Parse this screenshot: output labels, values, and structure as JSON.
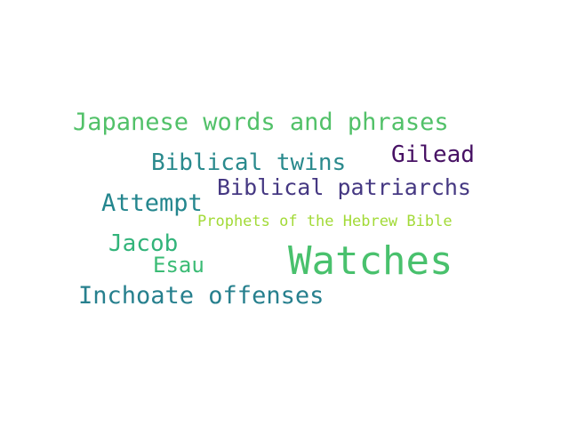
{
  "words": [
    {
      "text": "Japanese words and phrases",
      "color": "#52c169"
    },
    {
      "text": "Biblical twins",
      "color": "#2a8a8d"
    },
    {
      "text": "Gilead",
      "color": "#471164"
    },
    {
      "text": "Biblical patriarchs",
      "color": "#453882"
    },
    {
      "text": "Attempt",
      "color": "#24868e"
    },
    {
      "text": "Prophets of the Hebrew Bible",
      "color": "#a2da37"
    },
    {
      "text": "Jacob",
      "color": "#32b47a"
    },
    {
      "text": "Watches",
      "color": "#49c16d"
    },
    {
      "text": "Esau",
      "color": "#3bbb75"
    },
    {
      "text": "Inchoate offenses",
      "color": "#27808e"
    }
  ]
}
